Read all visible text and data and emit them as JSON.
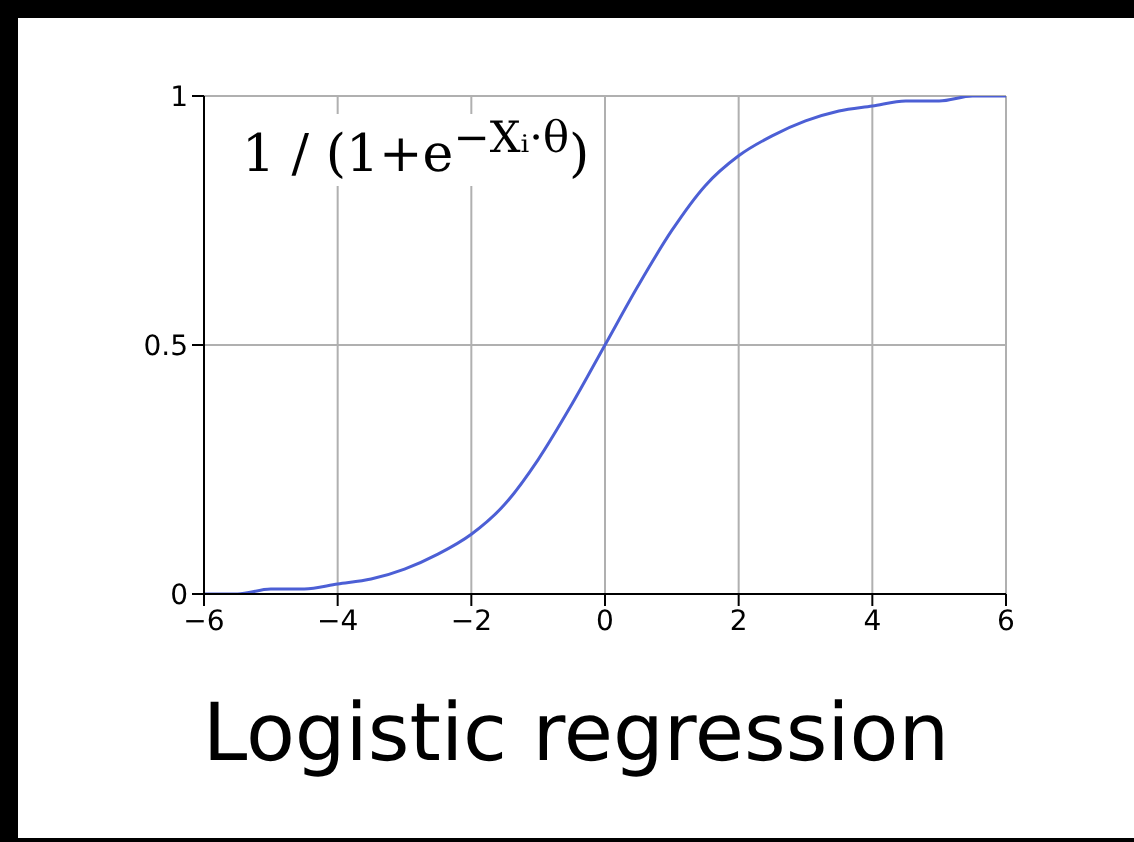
{
  "chart_data": {
    "type": "line",
    "title": "Logistic regression",
    "annotations": [
      "1 / (1+e$^{−Xᵢ·θ}$)"
    ],
    "x": [
      -6,
      -5.5,
      -5,
      -4.5,
      -4,
      -3.5,
      -3,
      -2.5,
      -2,
      -1.5,
      -1,
      -0.5,
      0,
      0.5,
      1,
      1.5,
      2,
      2.5,
      3,
      3.5,
      4,
      4.5,
      5,
      5.5,
      6
    ],
    "series": [
      {
        "color": "#4c5fd5",
        "values": [
          0.0,
          0.0,
          0.01,
          0.01,
          0.02,
          0.03,
          0.05,
          0.08,
          0.12,
          0.18,
          0.27,
          0.38,
          0.5,
          0.62,
          0.73,
          0.82,
          0.88,
          0.92,
          0.95,
          0.97,
          0.98,
          0.99,
          0.99,
          1.0,
          1.0
        ]
      }
    ],
    "xlim": [
      -6,
      6
    ],
    "ylim": [
      0,
      1
    ],
    "xticks": [
      {
        "value": -6,
        "label": "−6"
      },
      {
        "value": -4,
        "label": "−4"
      },
      {
        "value": -2,
        "label": "−2"
      },
      0,
      2,
      4,
      6
    ],
    "yticks": [
      0,
      0.5,
      1
    ],
    "grid": true,
    "marker": "none",
    "line_style": "solid"
  }
}
